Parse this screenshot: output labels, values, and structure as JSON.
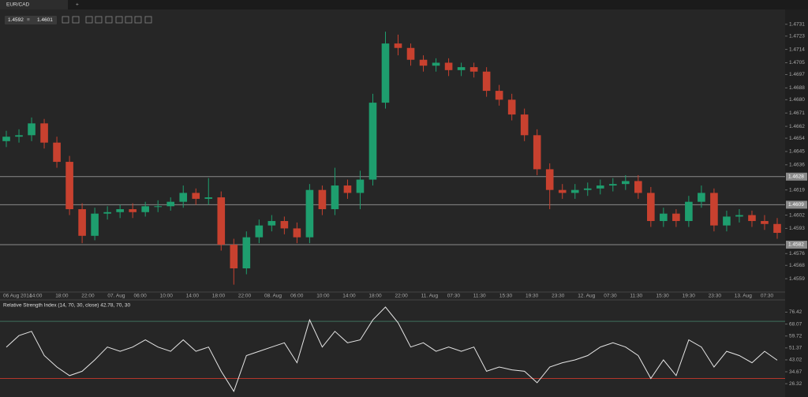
{
  "toolbar": {
    "tab": "EUR/CAD",
    "add_tab": "+",
    "bid": 1.4592,
    "ask": 1.4601
  },
  "chart_data": [
    {
      "type": "candlestick",
      "up_color": "#1e9e6e",
      "down_color": "#c8412f",
      "time_labels": [
        "06 Aug 2014",
        "14:00",
        "18:00",
        "22:00",
        "07. Aug",
        "06:00",
        "10:00",
        "14:00",
        "18:00",
        "22:00",
        "08. Aug",
        "06:00",
        "10:00",
        "14:00",
        "18:00",
        "22:00",
        "11. Aug",
        "07:30",
        "11:30",
        "15:30",
        "19:30",
        "23:30",
        "12. Aug",
        "07:30",
        "11:30",
        "15:30",
        "19:30",
        "23:30",
        "13. Aug",
        "07:30"
      ],
      "open": [
        1.4652,
        1.4655,
        1.4656,
        1.4664,
        1.4651,
        1.4638,
        1.4606,
        1.4588,
        1.4603,
        1.4604,
        1.4606,
        1.4604,
        1.4608,
        1.4608,
        1.4611,
        1.4617,
        1.4613,
        1.4614,
        1.4582,
        1.4566,
        1.4587,
        1.4595,
        1.4598,
        1.4593,
        1.4587,
        1.4619,
        1.4606,
        1.4622,
        1.4617,
        1.4626,
        1.4678,
        1.4718,
        1.4715,
        1.4707,
        1.4703,
        1.4705,
        1.47,
        1.4702,
        1.4699,
        1.4686,
        1.468,
        1.467,
        1.4656,
        1.4633,
        1.4619,
        1.4617,
        1.4619,
        1.462,
        1.4622,
        1.4623,
        1.4625,
        1.4617,
        1.4598,
        1.4603,
        1.4598,
        1.4611,
        1.4617,
        1.4595,
        1.4601,
        1.4602,
        1.4598,
        1.4596
      ],
      "high": [
        1.4659,
        1.466,
        1.4668,
        1.4667,
        1.4655,
        1.4642,
        1.461,
        1.4607,
        1.4608,
        1.4609,
        1.461,
        1.4611,
        1.4612,
        1.4614,
        1.4622,
        1.462,
        1.4627,
        1.4618,
        1.4586,
        1.4591,
        1.4599,
        1.4602,
        1.4601,
        1.4597,
        1.4623,
        1.4622,
        1.4634,
        1.4626,
        1.4632,
        1.4684,
        1.4726,
        1.4724,
        1.4718,
        1.471,
        1.4708,
        1.4708,
        1.4705,
        1.4705,
        1.4702,
        1.469,
        1.4684,
        1.4674,
        1.466,
        1.4637,
        1.4623,
        1.4623,
        1.4624,
        1.4626,
        1.4627,
        1.4629,
        1.4629,
        1.4621,
        1.4607,
        1.4606,
        1.4615,
        1.4622,
        1.462,
        1.4605,
        1.4606,
        1.4605,
        1.4602,
        1.46
      ],
      "low": [
        1.4648,
        1.4651,
        1.4652,
        1.4647,
        1.4634,
        1.4602,
        1.4583,
        1.4585,
        1.4599,
        1.46,
        1.46,
        1.4601,
        1.4604,
        1.4605,
        1.4607,
        1.4609,
        1.4609,
        1.4578,
        1.4555,
        1.4562,
        1.4583,
        1.4591,
        1.4589,
        1.4583,
        1.4583,
        1.4602,
        1.4602,
        1.4613,
        1.4606,
        1.4622,
        1.4674,
        1.471,
        1.4703,
        1.4699,
        1.4699,
        1.4696,
        1.4696,
        1.4695,
        1.4682,
        1.4676,
        1.4666,
        1.4652,
        1.4629,
        1.4606,
        1.4613,
        1.4613,
        1.4615,
        1.4616,
        1.4618,
        1.4619,
        1.4613,
        1.4594,
        1.4594,
        1.4594,
        1.4594,
        1.4607,
        1.4591,
        1.4591,
        1.4597,
        1.4594,
        1.4592,
        1.4586
      ],
      "close": [
        1.4655,
        1.4656,
        1.4664,
        1.4651,
        1.4638,
        1.4606,
        1.4588,
        1.4603,
        1.4604,
        1.4606,
        1.4604,
        1.4608,
        1.4608,
        1.4611,
        1.4617,
        1.4613,
        1.4614,
        1.4582,
        1.4566,
        1.4587,
        1.4595,
        1.4598,
        1.4593,
        1.4587,
        1.4619,
        1.4606,
        1.4622,
        1.4617,
        1.4626,
        1.4678,
        1.4718,
        1.4715,
        1.4707,
        1.4703,
        1.4705,
        1.47,
        1.4702,
        1.4699,
        1.4686,
        1.468,
        1.467,
        1.4656,
        1.4633,
        1.4619,
        1.4617,
        1.4619,
        1.462,
        1.4622,
        1.4623,
        1.4625,
        1.4617,
        1.4598,
        1.4603,
        1.4598,
        1.4611,
        1.4617,
        1.4595,
        1.4601,
        1.4602,
        1.4598,
        1.4596,
        1.459
      ],
      "ylim": [
        1.455,
        1.4741
      ],
      "yticks": [
        1.4559,
        1.4568,
        1.4576,
        1.4593,
        1.4602,
        1.4619,
        1.4636,
        1.4645,
        1.4654,
        1.4662,
        1.4671,
        {
          "value": 1.468,
          "label": "1.4680"
        },
        1.4688,
        1.4697,
        1.4705,
        1.4714,
        1.4723,
        1.4731
      ],
      "levels": [
        1.4628,
        1.4609,
        1.4582
      ]
    },
    {
      "type": "line",
      "title": "Relative Strength Index (14, 70, 30, close) 42.78, 70, 30",
      "color": "#e6e6e6",
      "values": [
        51.9,
        60,
        63,
        46,
        38,
        32,
        35,
        43,
        52,
        49,
        52,
        57,
        52,
        49,
        57,
        49,
        52,
        35,
        21,
        46,
        49,
        52,
        55,
        41,
        71,
        52,
        63,
        55,
        57,
        71,
        80,
        69,
        52,
        55,
        49,
        52,
        49,
        52,
        35,
        38,
        36,
        35,
        27,
        38,
        41,
        43,
        46,
        52,
        55,
        52,
        46,
        30,
        43,
        32,
        57,
        52,
        38,
        49,
        46,
        41,
        49,
        42.78
      ],
      "ylim": [
        17,
        85
      ],
      "yticks": [
        26.32,
        34.67,
        43.02,
        51.37,
        59.72,
        68.07,
        76.42
      ],
      "levels": [
        {
          "value": 70,
          "color": "#3f6f5c"
        },
        {
          "value": 30,
          "color": "#b3362b"
        }
      ]
    }
  ]
}
